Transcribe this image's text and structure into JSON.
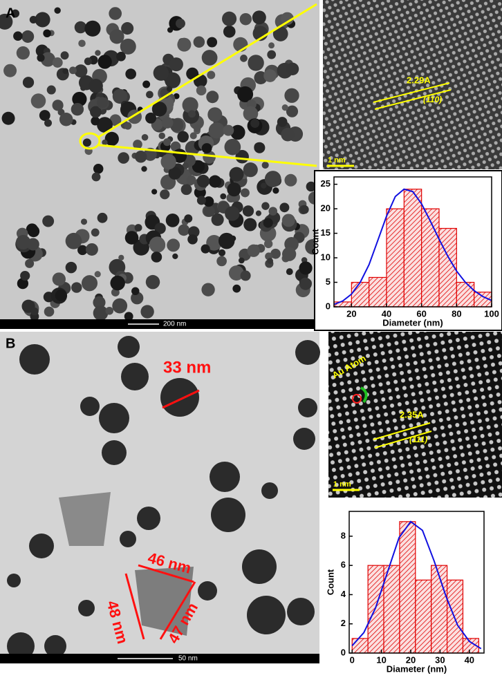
{
  "panels": [
    {
      "label": "A",
      "scale_bar": "200 nm",
      "hrtem": {
        "scale_bar": "1 nm",
        "d_spacing": "2.29A",
        "plane": "(110)"
      }
    },
    {
      "label": "B",
      "scale_bar": "50 nm",
      "sizes": [
        "33 nm",
        "46 nm",
        "48 nm",
        "47 nm"
      ],
      "hrtem": {
        "scale_bar": "1 nm",
        "d_spacing": "2.35A",
        "plane": "(111)",
        "atom_label": "Au Atom"
      }
    }
  ],
  "chart_data": [
    {
      "type": "histogram",
      "x_label": "Diameter (nm)",
      "y_label": "Count",
      "color": "#e00000",
      "bins": [
        10,
        20,
        30,
        40,
        50,
        60,
        70,
        80,
        90,
        100
      ],
      "counts": [
        1,
        5,
        6,
        20,
        24,
        20,
        16,
        5,
        3
      ],
      "xlim": [
        10,
        100
      ],
      "xticks": [
        20,
        40,
        60,
        80,
        100
      ],
      "ylim": [
        0,
        26.5
      ],
      "yticks": [
        0,
        5,
        10,
        15,
        20,
        25
      ],
      "fit": {
        "color": "#1010e0",
        "x": [
          10,
          15,
          20,
          25,
          30,
          35,
          40,
          45,
          50,
          55,
          60,
          65,
          70,
          75,
          80,
          85,
          90,
          95,
          100
        ],
        "values": [
          0.5,
          1.2,
          2.6,
          5,
          8.6,
          13.5,
          18.5,
          22.5,
          24,
          23.5,
          21,
          17.5,
          13.8,
          10.3,
          7.3,
          5,
          3.3,
          2.1,
          1.3
        ]
      }
    },
    {
      "type": "histogram",
      "x_label": "Diameter (nm)",
      "y_label": "Count",
      "color": "#e00000",
      "bins": [
        0,
        5.4,
        10.8,
        16.2,
        21.6,
        27,
        32.4,
        37.8,
        43.2
      ],
      "counts": [
        1,
        6,
        6,
        9,
        5,
        6,
        5,
        1
      ],
      "xlim": [
        -1,
        45
      ],
      "xticks": [
        0,
        10,
        20,
        30,
        40
      ],
      "ylim": [
        0,
        9.7
      ],
      "yticks": [
        0,
        2,
        4,
        6,
        8
      ],
      "fit": {
        "color": "#1010e0",
        "x": [
          0,
          4,
          8,
          12,
          16,
          20,
          24,
          28,
          32,
          36,
          40,
          44
        ],
        "values": [
          0.5,
          1.4,
          3.1,
          5.5,
          7.9,
          9,
          8.4,
          6.3,
          3.9,
          1.9,
          0.8,
          0.3
        ]
      }
    }
  ]
}
